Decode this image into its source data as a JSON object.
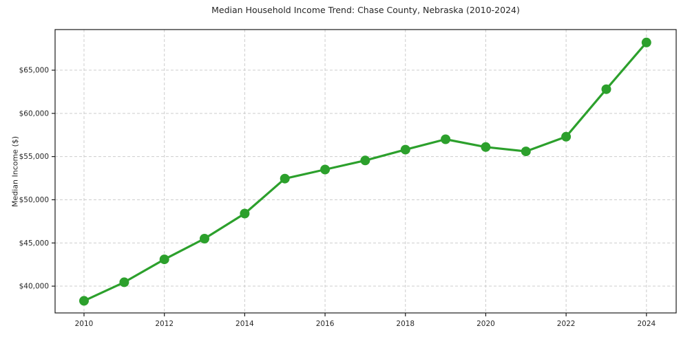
{
  "chart_data": {
    "type": "line",
    "title": "Median Household Income Trend: Chase County, Nebraska (2010-2024)",
    "xlabel": "",
    "ylabel": "Median Income ($)",
    "x": [
      2010,
      2011,
      2012,
      2013,
      2014,
      2015,
      2016,
      2017,
      2018,
      2019,
      2020,
      2021,
      2022,
      2023,
      2024
    ],
    "values": [
      38300,
      40450,
      43100,
      45500,
      48400,
      52450,
      53500,
      54550,
      55800,
      57000,
      56100,
      55600,
      57300,
      62800,
      68200
    ],
    "x_ticks": [
      2010,
      2012,
      2014,
      2016,
      2018,
      2020,
      2022,
      2024
    ],
    "y_ticks": [
      40000,
      45000,
      50000,
      55000,
      60000,
      65000
    ],
    "y_tick_labels": [
      "$40,000",
      "$45,000",
      "$50,000",
      "$55,000",
      "$60,000",
      "$65,000"
    ],
    "xlim": [
      2009.28,
      2024.74
    ],
    "ylim": [
      36900,
      69700
    ],
    "grid": true,
    "grid_style": "dashed",
    "legend": "none",
    "line_color": "#2ca02c",
    "marker": "circle",
    "grid_color": "#cccccc",
    "spine_color": "#1a1a1a",
    "text_color": "#262626",
    "background_color": "#ffffff"
  }
}
